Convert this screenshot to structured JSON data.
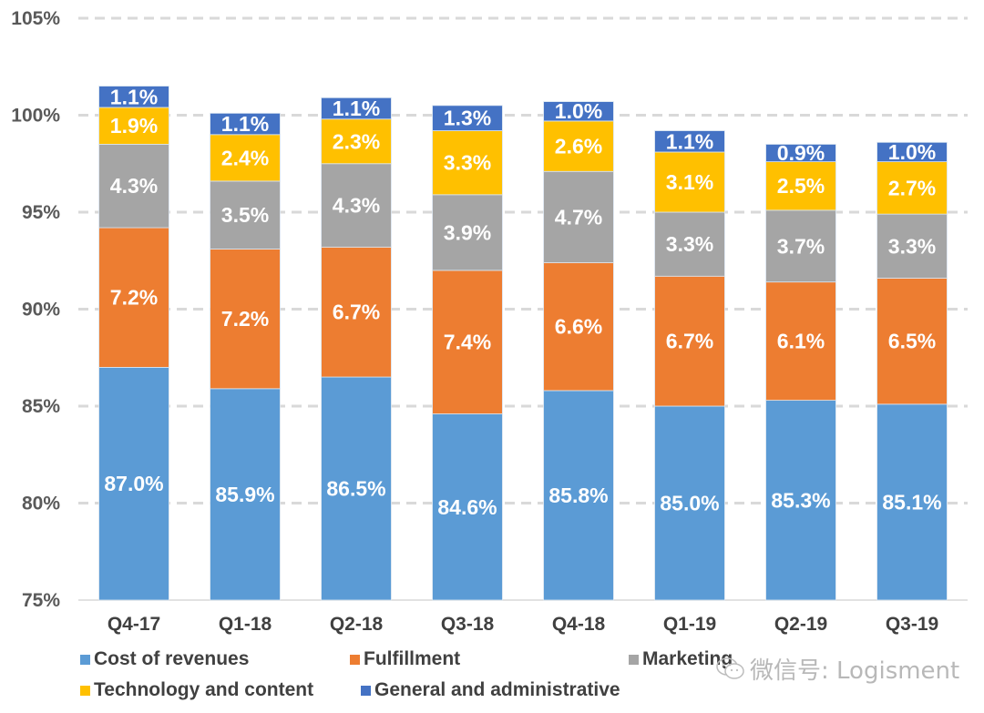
{
  "chart_data": {
    "type": "bar",
    "stacked": true,
    "title": "",
    "xlabel": "",
    "ylabel": "",
    "ylim": [
      75,
      105
    ],
    "yticks": [
      75,
      80,
      85,
      90,
      95,
      100,
      105
    ],
    "ytick_labels": [
      "75%",
      "80%",
      "85%",
      "90%",
      "95%",
      "100%",
      "105%"
    ],
    "grid": true,
    "legend_position": "bottom",
    "categories": [
      "Q4-17",
      "Q1-18",
      "Q2-18",
      "Q3-18",
      "Q4-18",
      "Q1-19",
      "Q2-19",
      "Q3-19"
    ],
    "series": [
      {
        "name": "Cost of revenues",
        "color": "#5B9BD5",
        "values": [
          87.0,
          85.9,
          86.5,
          84.6,
          85.8,
          85.0,
          85.3,
          85.1
        ],
        "labels": [
          "87.0%",
          "85.9%",
          "86.5%",
          "84.6%",
          "85.8%",
          "85.0%",
          "85.3%",
          "85.1%"
        ]
      },
      {
        "name": "Fulfillment",
        "color": "#ED7D31",
        "values": [
          7.2,
          7.2,
          6.7,
          7.4,
          6.6,
          6.7,
          6.1,
          6.5
        ],
        "labels": [
          "7.2%",
          "7.2%",
          "6.7%",
          "7.4%",
          "6.6%",
          "6.7%",
          "6.1%",
          "6.5%"
        ]
      },
      {
        "name": "Marketing",
        "color": "#A5A5A5",
        "values": [
          4.3,
          3.5,
          4.3,
          3.9,
          4.7,
          3.3,
          3.7,
          3.3
        ],
        "labels": [
          "4.3%",
          "3.5%",
          "4.3%",
          "3.9%",
          "4.7%",
          "3.3%",
          "3.7%",
          "3.3%"
        ]
      },
      {
        "name": "Technology and content",
        "color": "#FFC000",
        "values": [
          1.9,
          2.4,
          2.3,
          3.3,
          2.6,
          3.1,
          2.5,
          2.7
        ],
        "labels": [
          "1.9%",
          "2.4%",
          "2.3%",
          "3.3%",
          "2.6%",
          "3.1%",
          "2.5%",
          "2.7%"
        ]
      },
      {
        "name": "General and administrative",
        "color": "#4472C4",
        "values": [
          1.1,
          1.1,
          1.1,
          1.3,
          1.0,
          1.1,
          0.9,
          1.0
        ],
        "labels": [
          "1.1%",
          "1.1%",
          "1.1%",
          "1.3%",
          "1.0%",
          "1.1%",
          "0.9%",
          "1.0%"
        ]
      }
    ]
  },
  "legend": {
    "items": [
      {
        "label": "Cost of revenues",
        "color": "#5B9BD5"
      },
      {
        "label": "Fulfillment",
        "color": "#ED7D31"
      },
      {
        "label": "Marketing",
        "color": "#A5A5A5"
      },
      {
        "label": "Technology and content",
        "color": "#FFC000"
      },
      {
        "label": "General and administrative",
        "color": "#4472C4"
      }
    ]
  },
  "watermark": {
    "text": "微信号: Logisment"
  }
}
